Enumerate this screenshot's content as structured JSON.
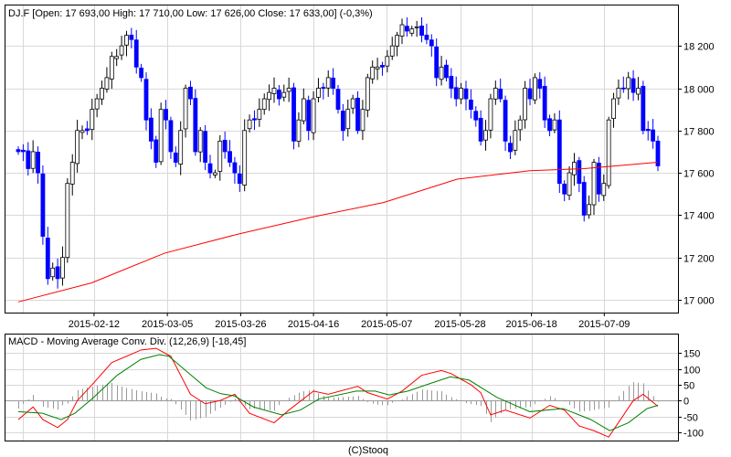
{
  "header": {
    "title": "DJ.F [Open: 17 693,00  High: 17 710,00  Low: 17 626,00  Close: 17 633,00] (-0,3%)"
  },
  "footer": {
    "credit": "(C)Stooq"
  },
  "colors": {
    "down": "#0000ff",
    "up": "#ffffff",
    "ma": "#ff0000",
    "macd": "#ff0000",
    "signal": "#008000",
    "hist": "#999999",
    "grid": "#d8d8d8"
  },
  "chart_data": [
    {
      "type": "candlestick",
      "title": "DJ.F",
      "ylim": [
        16950,
        18350
      ],
      "yticks": [
        17000,
        17200,
        17400,
        17600,
        17800,
        18000,
        18200
      ],
      "ytick_labels": [
        "17 000",
        "17 200",
        "17 400",
        "17 600",
        "17 800",
        "18 000",
        "18 200"
      ],
      "xticks": [
        {
          "index": 15.4,
          "label": "2015-02-12"
        },
        {
          "index": 30.3,
          "label": "2015-03-05"
        },
        {
          "index": 45.2,
          "label": "2015-03-26"
        },
        {
          "index": 60,
          "label": "2015-04-16"
        },
        {
          "index": 74.9,
          "label": "2015-05-07"
        },
        {
          "index": 89.8,
          "label": "2015-05-28"
        },
        {
          "index": 104.3,
          "label": "2015-06-18"
        },
        {
          "index": 119.1,
          "label": "2015-07-09"
        }
      ],
      "closes": [
        17700,
        17700,
        17620,
        17700,
        17600,
        17300,
        17100,
        17150,
        17100,
        17200,
        17550,
        17650,
        17800,
        17800,
        17800,
        17900,
        17950,
        18000,
        18050,
        18150,
        18150,
        18200,
        18250,
        18230,
        18100,
        18050,
        17850,
        17750,
        17650,
        17900,
        17850,
        17700,
        17650,
        17800,
        18000,
        17950,
        17700,
        17800,
        17650,
        17600,
        17600,
        17750,
        17700,
        17650,
        17600,
        17550,
        17800,
        17850,
        17850,
        17900,
        17950,
        17980,
        18000,
        17950,
        17980,
        18000,
        17750,
        17850,
        17950,
        17800,
        17950,
        18000,
        18000,
        18050,
        18000,
        17900,
        17800,
        17900,
        17950,
        17800,
        17900,
        18050,
        18100,
        18100,
        18100,
        18150,
        18200,
        18250,
        18300,
        18270,
        18280,
        18290,
        18250,
        18230,
        18200,
        18050,
        18100,
        18050,
        18000,
        17950,
        18000,
        17950,
        17900,
        17850,
        17750,
        17800,
        17950,
        18000,
        17950,
        17750,
        17700,
        17800,
        17850,
        18000,
        17950,
        18050,
        18000,
        17850,
        17800,
        17850,
        17550,
        17500,
        17600,
        17650,
        17550,
        17400,
        17450,
        17650,
        17500,
        17550,
        17850,
        17950,
        18000,
        18000,
        18050,
        17980,
        18000,
        17800,
        17800,
        17750,
        17633
      ],
      "moving_average": [
        [
          0,
          16990
        ],
        [
          14.9,
          17080
        ],
        [
          29.7,
          17220
        ],
        [
          44.6,
          17310
        ],
        [
          59.5,
          17390
        ],
        [
          74.3,
          17460
        ],
        [
          89.2,
          17570
        ],
        [
          104,
          17610
        ],
        [
          115,
          17620
        ],
        [
          130,
          17650
        ]
      ]
    },
    {
      "type": "line",
      "title": "MACD - Moving Average Conv. Div. (12,26,9) [-18,45]",
      "ylim": [
        -125,
        190
      ],
      "yticks": [
        -100,
        -50,
        0,
        50,
        100,
        150
      ],
      "ytick_labels": [
        "-100",
        "-50",
        "0",
        "50",
        "100",
        "150"
      ],
      "series": [
        {
          "name": "MACD",
          "points": [
            [
              0,
              -60
            ],
            [
              3,
              -20
            ],
            [
              5,
              -60
            ],
            [
              8,
              -85
            ],
            [
              10,
              -60
            ],
            [
              12,
              0
            ],
            [
              15,
              50
            ],
            [
              19,
              120
            ],
            [
              25,
              160
            ],
            [
              28,
              165
            ],
            [
              31,
              140
            ],
            [
              33,
              80
            ],
            [
              35,
              20
            ],
            [
              38,
              -10
            ],
            [
              41,
              0
            ],
            [
              44,
              20
            ],
            [
              47,
              -40
            ],
            [
              52,
              -70
            ],
            [
              55,
              -30
            ],
            [
              60,
              30
            ],
            [
              63,
              20
            ],
            [
              69,
              45
            ],
            [
              71,
              25
            ],
            [
              75,
              5
            ],
            [
              78,
              30
            ],
            [
              82,
              80
            ],
            [
              86,
              95
            ],
            [
              88,
              85
            ],
            [
              92,
              50
            ],
            [
              94,
              25
            ],
            [
              96,
              -45
            ],
            [
              99,
              -30
            ],
            [
              104,
              -55
            ],
            [
              108,
              -15
            ],
            [
              111,
              -30
            ],
            [
              114,
              -80
            ],
            [
              117,
              -95
            ],
            [
              120,
              -115
            ],
            [
              125,
              0
            ],
            [
              127,
              20
            ],
            [
              130,
              -18
            ]
          ]
        },
        {
          "name": "Signal",
          "points": [
            [
              0,
              -35
            ],
            [
              4.9,
              -40
            ],
            [
              8.7,
              -60
            ],
            [
              11.5,
              -40
            ],
            [
              15.3,
              10
            ],
            [
              20.1,
              80
            ],
            [
              24.9,
              130
            ],
            [
              28.7,
              145
            ],
            [
              30.6,
              140
            ],
            [
              34.4,
              90
            ],
            [
              38.2,
              40
            ],
            [
              41.1,
              22
            ],
            [
              43.9,
              15
            ],
            [
              47.8,
              -20
            ],
            [
              53.5,
              -45
            ],
            [
              57.3,
              -30
            ],
            [
              61.1,
              5
            ],
            [
              68.7,
              30
            ],
            [
              72.5,
              30
            ],
            [
              75.4,
              18
            ],
            [
              79.2,
              30
            ],
            [
              83.9,
              55
            ],
            [
              87.8,
              75
            ],
            [
              91.6,
              65
            ],
            [
              97.3,
              10
            ],
            [
              104,
              -35
            ],
            [
              110.7,
              -25
            ],
            [
              116.4,
              -60
            ],
            [
              120.2,
              -95
            ],
            [
              124,
              -70
            ],
            [
              127.8,
              -25
            ],
            [
              130,
              -15
            ]
          ]
        }
      ]
    }
  ]
}
